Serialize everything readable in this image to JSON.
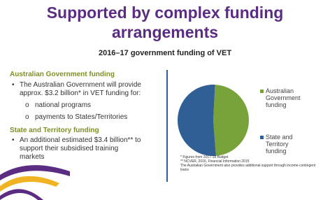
{
  "title": "Supported by complex funding arrangements",
  "subtitle": "2016–17 government funding of VET",
  "left": {
    "section1": {
      "heading": "Australian Government funding",
      "bullet": "The Australian Government will provide approx. $3.2 billion* in VET funding for:",
      "subitems": [
        "national programs",
        "payments to States/Territories"
      ]
    },
    "section2": {
      "heading": "State and Territory funding",
      "bullet": "An additional estimated $3.4 billion** to support their subsidised training markets"
    }
  },
  "chart_data": {
    "type": "pie",
    "categories": [
      "Australian Government funding",
      "State and Territory funding"
    ],
    "values": [
      48,
      52
    ],
    "colors": [
      "#77a33a",
      "#2f5f95"
    ]
  },
  "footnotes": [
    "* Figures from 2017-18 Budget",
    "** NCVER, 2016, Financial Information 2015",
    "The Australian Government also provides additional support through income-contingent loans"
  ]
}
